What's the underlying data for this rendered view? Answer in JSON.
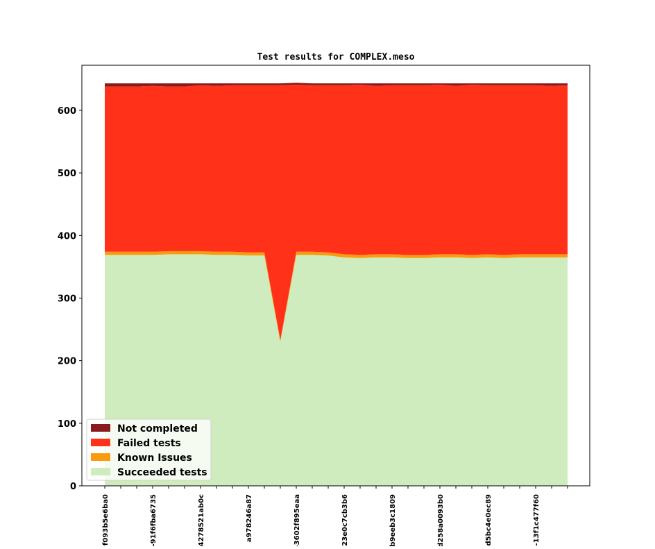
{
  "chart_data": {
    "type": "area",
    "stacked": true,
    "title": "Test results for COMPLEX.meso",
    "xlabel": "",
    "ylabel": "",
    "ylim": [
      0,
      672
    ],
    "yticks": [
      0,
      100,
      200,
      300,
      400,
      500,
      600
    ],
    "xtick_labels": [
      "-f093b5e6ba0",
      "-91f6fba6735",
      "4278521ab0c",
      "a978246a87",
      "-3602f895eaa",
      "23e0c7cb3b6",
      "b9eeb3c1809",
      "d258a0093b0",
      "-d5bc4e0ec89",
      "-13f1c477f60"
    ],
    "num_points": 30,
    "grid": false,
    "legend": "lower-left",
    "series": [
      {
        "name": "Succeeded tests",
        "color": "#cfecbe",
        "values": [
          369,
          369,
          369,
          369,
          370,
          370,
          370,
          369,
          369,
          368,
          368,
          230,
          369,
          369,
          368,
          365,
          364,
          365,
          365,
          364,
          364,
          365,
          365,
          364,
          365,
          364,
          365,
          365,
          365,
          365
        ]
      },
      {
        "name": "Known Issues",
        "color": "#f99b0d",
        "values": [
          5,
          5,
          5,
          5,
          5,
          5,
          5,
          5,
          5,
          5,
          5,
          3,
          5,
          5,
          5,
          5,
          5,
          5,
          5,
          5,
          5,
          5,
          5,
          5,
          5,
          5,
          5,
          5,
          5,
          5
        ]
      },
      {
        "name": "Failed tests",
        "color": "#ff3119",
        "values": [
          264,
          264,
          264,
          265,
          263,
          263,
          265,
          265,
          266,
          267,
          267,
          407,
          267,
          266,
          267,
          270,
          272,
          269,
          270,
          271,
          271,
          271,
          269,
          272,
          270,
          271,
          270,
          270,
          269,
          270
        ]
      },
      {
        "name": "Not completed",
        "color": "#8b1a1d",
        "values": [
          5,
          5,
          5,
          4,
          5,
          5,
          3,
          4,
          3,
          3,
          3,
          3,
          3,
          3,
          3,
          3,
          2,
          4,
          3,
          3,
          3,
          2,
          4,
          2,
          3,
          3,
          3,
          3,
          4,
          3
        ]
      }
    ],
    "legend_order": [
      "Not completed",
      "Failed tests",
      "Known Issues",
      "Succeeded tests"
    ]
  }
}
